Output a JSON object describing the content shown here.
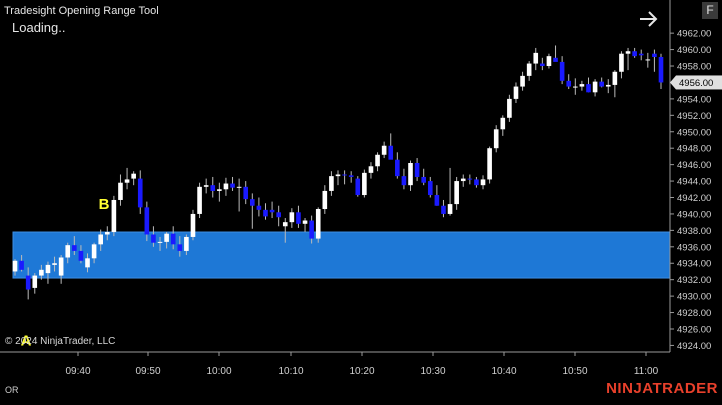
{
  "header": {
    "title": "Tradesight Opening Range Tool",
    "status": "Loading..",
    "arrow_icon": "arrow-right-icon",
    "f_button_label": "F"
  },
  "footer": {
    "copyright": "© 2024 NinjaTrader, LLC",
    "indicator_label": "OR",
    "brand": "NINJATRADER"
  },
  "colors": {
    "background": "#000000",
    "up_candle": "#ffffff",
    "down_candle": "#1a1aff",
    "opening_range_fill": "#1e78d6",
    "opening_range_border": "#3d8ee3",
    "annotation": "#ffff33",
    "brand": "#e8402b"
  },
  "chart_data": {
    "type": "candlestick",
    "y_ticks": [
      "4962.00",
      "4960.00",
      "4958.00",
      "4956.00",
      "4954.00",
      "4952.00",
      "4950.00",
      "4948.00",
      "4946.00",
      "4944.00",
      "4942.00",
      "4940.00",
      "4938.00",
      "4936.00",
      "4934.00",
      "4932.00",
      "4930.00",
      "4928.00",
      "4926.00",
      "4924.00"
    ],
    "x_ticks": [
      "09:40",
      "09:50",
      "10:00",
      "10:10",
      "10:20",
      "10:30",
      "10:40",
      "10:50",
      "11:00"
    ],
    "ylim": [
      4923.2,
      4963.6
    ],
    "last_price": "4956.00",
    "opening_range": {
      "high": 4937.8,
      "low": 4932.2
    },
    "annotations": [
      {
        "label": "A",
        "price": 4927.9
      },
      {
        "label": "B",
        "price": 4940.6
      }
    ],
    "candles": [
      [
        4933,
        4934.5,
        4932.5,
        4934.3
      ],
      [
        4934.3,
        4935,
        4933,
        4933.2
      ],
      [
        4932.5,
        4933.5,
        4929.6,
        4930.8
      ],
      [
        4931,
        4932.8,
        4930.3,
        4932.5
      ],
      [
        4932.5,
        4933.8,
        4932,
        4933.2
      ],
      [
        4932.8,
        4934.2,
        4931.5,
        4933.8
      ],
      [
        4933.8,
        4934.8,
        4933,
        4934
      ],
      [
        4932.5,
        4935,
        4931.5,
        4934.7
      ],
      [
        4934.7,
        4936.5,
        4934,
        4936.2
      ],
      [
        4936.2,
        4937.3,
        4935,
        4935.5
      ],
      [
        4935.5,
        4936.2,
        4934,
        4934.3
      ],
      [
        4933.5,
        4935.2,
        4932.9,
        4934.6
      ],
      [
        4934.6,
        4936.5,
        4934,
        4936.3
      ],
      [
        4936.3,
        4938.1,
        4935.5,
        4937.5
      ],
      [
        4937.5,
        4938.5,
        4936.8,
        4937.8
      ],
      [
        4937.8,
        4942.2,
        4937.3,
        4941.7
      ],
      [
        4941.7,
        4944.8,
        4941,
        4943.8
      ],
      [
        4943.8,
        4945.6,
        4943,
        4944.2
      ],
      [
        4944.3,
        4945.2,
        4943.5,
        4944.9
      ],
      [
        4944.3,
        4945.3,
        4940,
        4940.8
      ],
      [
        4940.8,
        4941.5,
        4936.7,
        4937.5
      ],
      [
        4937.5,
        4938.5,
        4936,
        4936.5
      ],
      [
        4936.5,
        4937.2,
        4935.5,
        4936.6
      ],
      [
        4936.6,
        4937.8,
        4935.8,
        4937.6
      ],
      [
        4937.6,
        4938.5,
        4935.7,
        4936.3
      ],
      [
        4936.3,
        4937.3,
        4934.8,
        4935.5
      ],
      [
        4935.5,
        4937.5,
        4935,
        4937.2
      ],
      [
        4937.2,
        4940.5,
        4936.8,
        4940
      ],
      [
        4940,
        4943.8,
        4939.5,
        4943.3
      ],
      [
        4943.3,
        4944.3,
        4942.5,
        4943.5
      ],
      [
        4943.5,
        4944.5,
        4942,
        4942.8
      ],
      [
        4942.8,
        4943.8,
        4941.5,
        4943
      ],
      [
        4943,
        4944.4,
        4942.2,
        4943.7
      ],
      [
        4943.7,
        4944.5,
        4942.8,
        4943.2
      ],
      [
        4943.2,
        4944.3,
        4940.3,
        4943.3
      ],
      [
        4943.3,
        4944,
        4941.2,
        4941.8
      ],
      [
        4941.8,
        4942.5,
        4938.2,
        4941
      ],
      [
        4941,
        4942,
        4939.7,
        4940.5
      ],
      [
        4940.5,
        4941.3,
        4939.3,
        4939.7
      ],
      [
        4940.5,
        4941.5,
        4939.5,
        4940.2
      ],
      [
        4940.2,
        4941,
        4938.5,
        4939.6
      ],
      [
        4938.5,
        4939.5,
        4936.5,
        4939
      ],
      [
        4939,
        4940.7,
        4938.3,
        4940.2
      ],
      [
        4940.2,
        4941,
        4938.3,
        4938.8
      ],
      [
        4938.8,
        4939.5,
        4937.8,
        4939.2
      ],
      [
        4939.2,
        4939.8,
        4936.4,
        4937
      ],
      [
        4937,
        4940.8,
        4936.5,
        4940.6
      ],
      [
        4940.6,
        4943.5,
        4940,
        4942.8
      ],
      [
        4942.8,
        4945.2,
        4942.2,
        4944.6
      ],
      [
        4944.6,
        4945.3,
        4943.5,
        4944.8
      ],
      [
        4944.8,
        4945.3,
        4943.6,
        4944.7
      ],
      [
        4944.7,
        4945.2,
        4943.8,
        4944.5
      ],
      [
        4944.3,
        4944.6,
        4942.1,
        4942.3
      ],
      [
        4942.3,
        4945.4,
        4942,
        4945
      ],
      [
        4945,
        4946.3,
        4944.3,
        4945.8
      ],
      [
        4945.8,
        4947.5,
        4945.2,
        4947.2
      ],
      [
        4947.2,
        4948.8,
        4946.8,
        4948.3
      ],
      [
        4948.3,
        4949.8,
        4947,
        4946.6
      ],
      [
        4946.6,
        4947.5,
        4944.3,
        4944.6
      ],
      [
        4944.6,
        4945.5,
        4943,
        4943.5
      ],
      [
        4943.5,
        4946.5,
        4942.8,
        4946.2
      ],
      [
        4946.2,
        4946.8,
        4944,
        4944.5
      ],
      [
        4944.5,
        4945.5,
        4943.5,
        4943.8
      ],
      [
        4944,
        4944.5,
        4942,
        4942.3
      ],
      [
        4942.3,
        4943.5,
        4941,
        4941
      ],
      [
        4941,
        4941.7,
        4939.6,
        4940
      ],
      [
        4940,
        4945.6,
        4939.8,
        4941.2
      ],
      [
        4941.2,
        4944.5,
        4940.5,
        4944
      ],
      [
        4944,
        4944.8,
        4943.3,
        4944.3
      ],
      [
        4944.3,
        4944.8,
        4943.6,
        4944.2
      ],
      [
        4944.2,
        4944.5,
        4943.2,
        4943.5
      ],
      [
        4943.5,
        4944.7,
        4943,
        4944.2
      ],
      [
        4944.2,
        4948.2,
        4943.7,
        4948
      ],
      [
        4948,
        4950.8,
        4947.5,
        4950.3
      ],
      [
        4950.3,
        4952,
        4949.5,
        4951.7
      ],
      [
        4951.7,
        4954.5,
        4951.2,
        4954
      ],
      [
        4954,
        4956,
        4953.5,
        4955.5
      ],
      [
        4955.5,
        4957.3,
        4955,
        4956.8
      ],
      [
        4956.8,
        4958.6,
        4956.2,
        4958.3
      ],
      [
        4958.3,
        4960.2,
        4957.5,
        4959.6
      ],
      [
        4958.3,
        4959,
        4957.5,
        4958
      ],
      [
        4958,
        4959.5,
        4957.7,
        4959.2
      ],
      [
        4959,
        4960.5,
        4958.6,
        4958.5
      ],
      [
        4958.5,
        4959.2,
        4955.8,
        4956.2
      ],
      [
        4956.2,
        4957,
        4955.2,
        4955.5
      ],
      [
        4955.5,
        4956.5,
        4954.5,
        4955.5
      ],
      [
        4955.5,
        4956.2,
        4955,
        4955.8
      ],
      [
        4955.8,
        4956.6,
        4954.8,
        4954.8
      ],
      [
        4954.8,
        4956.4,
        4954.3,
        4956.1
      ],
      [
        4956.1,
        4956.6,
        4955.4,
        4955.5
      ],
      [
        4955.5,
        4956.4,
        4954.7,
        4955.7
      ],
      [
        4955.7,
        4957.5,
        4954.2,
        4957.3
      ],
      [
        4957.3,
        4959.8,
        4956.5,
        4959.5
      ],
      [
        4959.5,
        4960.2,
        4957.5,
        4959.8
      ],
      [
        4959.8,
        4960.2,
        4959,
        4959.2
      ],
      [
        4959.5,
        4960,
        4958.7,
        4959.3
      ],
      [
        4958.8,
        4959.6,
        4957.8,
        4958.8
      ],
      [
        4959.5,
        4960,
        4957.3,
        4959.1
      ],
      [
        4959.1,
        4959.5,
        4955.2,
        4956
      ]
    ]
  }
}
